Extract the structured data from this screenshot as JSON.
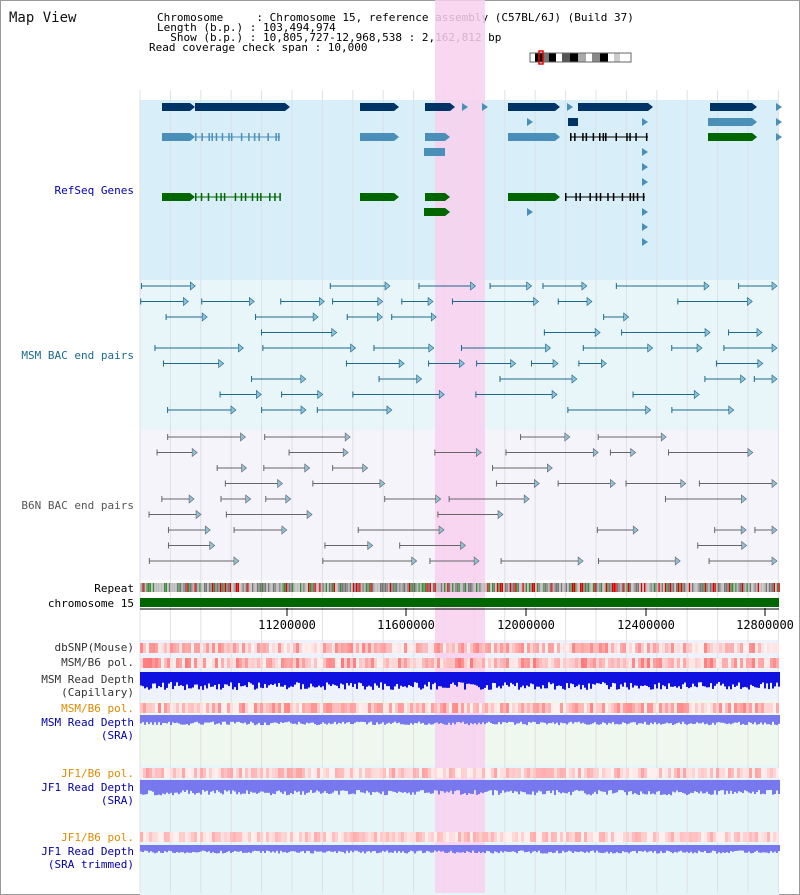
{
  "title": "Map View",
  "info": {
    "chromosome": "Chromosome     : Chromosome 15, reference assembly (C57BL/6J) (Build 37)",
    "length": "Length (b.p.) : 103,494,974",
    "show": "  Show (b.p.) : 10,805,727-12,968,538 : 2,162,812 bp",
    "coverage": "Read coverage check span : 10,000"
  },
  "tracks": {
    "refseq": "RefSeq Genes",
    "msm_bac": "MSM BAC end pairs",
    "b6n_bac": "B6N BAC end pairs",
    "repeat": "Repeat",
    "chromosome": "chromosome 15",
    "dbsnp": "dbSNP(Mouse)",
    "msm_b6_pol": "MSM/B6 pol.",
    "msm_read_depth_cap": "MSM Read Depth\n(Capillary)",
    "msm_b6_pol2": "MSM/B6 pol.",
    "msm_read_depth_sra": "MSM Read Depth\n(SRA)",
    "jf1_b6_pol": "JF1/B6 pol.",
    "jf1_read_depth_sra": "JF1 Read Depth\n(SRA)",
    "jf1_b6_pol2": "JF1/B6 pol.",
    "jf1_read_depth_trim": "JF1 Read Depth\n(SRA trimmed)"
  },
  "axis": {
    "ticks": [
      "11200000",
      "11600000",
      "12000000",
      "12400000",
      "12800000"
    ]
  },
  "colors": {
    "refseq_bg": "#d8eef8",
    "highlight": "#f8d0ee",
    "gene_navy": "#003366",
    "gene_steel": "#4a8fb8",
    "gene_green": "#006600",
    "bac_msm": "#1a6a8a",
    "bac_b6n": "#666666",
    "depth_dark": "#1010e0",
    "depth_light": "#7777ee"
  }
}
